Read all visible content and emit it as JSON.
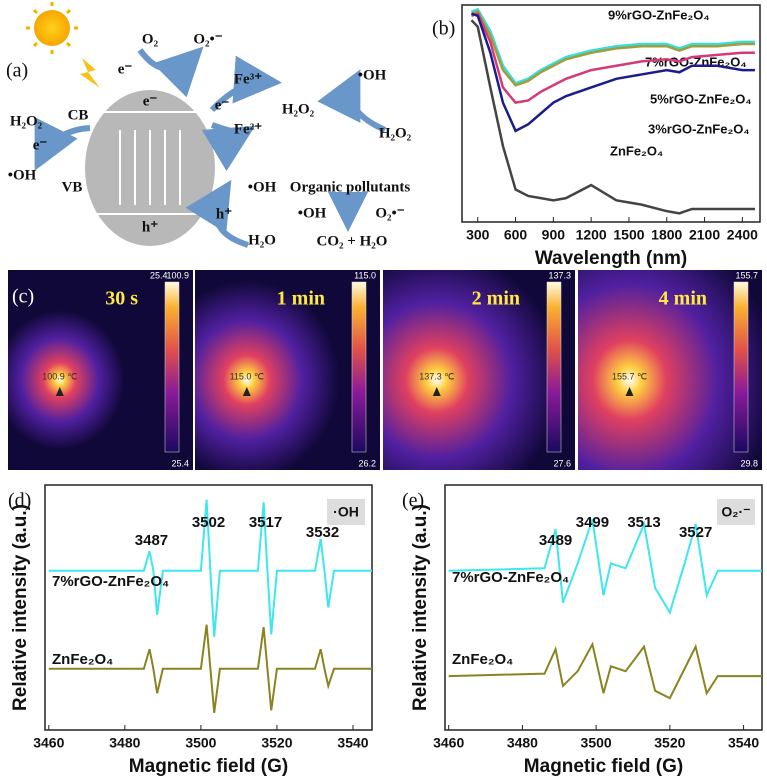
{
  "panel_a": {
    "label": "(a)",
    "texts": [
      "O₂",
      "O₂•⁻",
      "e⁻",
      "Fe³⁺",
      "e⁻",
      "H₂O₂",
      "Fe²⁺",
      "•OH",
      "H₂O₂",
      "H₂O₂",
      "CB",
      "e⁻",
      "•OH",
      "e⁻",
      "VB",
      "h⁺",
      "h⁺",
      "•OH",
      "H₂O",
      "Organic pollutants",
      "•OH",
      "O₂•⁻",
      "CO₂ + H₂O"
    ]
  },
  "panel_c": {
    "label": "(c)",
    "corner": "25.4",
    "frames": [
      {
        "time": "30 s",
        "max": "100.9",
        "min": "25.4",
        "spot": "100.9 ℃"
      },
      {
        "time": "1 min",
        "max": "115.0",
        "min": "26.2",
        "spot": "115.0 ℃"
      },
      {
        "time": "2 min",
        "max": "137.3",
        "min": "27.6",
        "spot": "137.3 ℃"
      },
      {
        "time": "4 min",
        "max": "155.7",
        "min": "29.8",
        "spot": "155.7 ℃"
      }
    ]
  },
  "chart_data": [
    {
      "type": "line",
      "label": "(b)",
      "xlabel": "Wavelength (nm)",
      "x": [
        250,
        300,
        400,
        500,
        600,
        700,
        800,
        900,
        1000,
        1200,
        1400,
        1600,
        1800,
        1900,
        2000,
        2200,
        2400,
        2500
      ],
      "xlim": [
        175,
        2540
      ],
      "xticks": [
        300,
        600,
        900,
        1200,
        1500,
        1800,
        2100,
        2400
      ],
      "ylim": [
        0,
        1
      ],
      "series": [
        {
          "name": "9%rGO-ZnFe₂O₄",
          "color": "#35dede",
          "values": [
            0.97,
            0.98,
            0.88,
            0.72,
            0.64,
            0.66,
            0.7,
            0.73,
            0.76,
            0.79,
            0.81,
            0.82,
            0.82,
            0.8,
            0.82,
            0.82,
            0.83,
            0.83
          ]
        },
        {
          "name": "7%rGO-ZnFe₂O₄",
          "color": "#a39c3c",
          "values": [
            0.96,
            0.97,
            0.86,
            0.7,
            0.63,
            0.65,
            0.69,
            0.72,
            0.75,
            0.78,
            0.8,
            0.81,
            0.81,
            0.79,
            0.81,
            0.81,
            0.82,
            0.82
          ]
        },
        {
          "name": "5%rGO-ZnFe₂O₄",
          "color": "#d43a78",
          "values": [
            0.95,
            0.96,
            0.83,
            0.62,
            0.55,
            0.56,
            0.6,
            0.63,
            0.66,
            0.7,
            0.72,
            0.74,
            0.75,
            0.74,
            0.76,
            0.77,
            0.78,
            0.78
          ]
        },
        {
          "name": "3%rGO-ZnFe₂O₄",
          "color": "#1c1c8c",
          "values": [
            0.96,
            0.95,
            0.78,
            0.55,
            0.42,
            0.45,
            0.5,
            0.55,
            0.58,
            0.62,
            0.66,
            0.68,
            0.7,
            0.69,
            0.72,
            0.72,
            0.7,
            0.7
          ]
        },
        {
          "name": "ZnFe₂O₄",
          "color": "#444444",
          "values": [
            0.93,
            0.9,
            0.62,
            0.35,
            0.15,
            0.12,
            0.11,
            0.1,
            0.11,
            0.17,
            0.1,
            0.08,
            0.05,
            0.04,
            0.06,
            0.06,
            0.06,
            0.06
          ]
        }
      ]
    },
    {
      "type": "line",
      "label": "(d)",
      "xlabel": "Magnetic field (G)",
      "ylabel": "Relative intensity (a.u.)",
      "tag": "·OH",
      "x": [
        3460,
        3485,
        3486.5,
        3487.5,
        3488.5,
        3490,
        3500,
        3501.5,
        3502.5,
        3503.5,
        3505,
        3515,
        3516.5,
        3517.5,
        3518.5,
        3520,
        3530,
        3531.5,
        3532.5,
        3533.5,
        3535,
        3545
      ],
      "xlim": [
        3459,
        3545
      ],
      "xticks": [
        3460,
        3480,
        3500,
        3520,
        3540
      ],
      "ylim": [
        0,
        10
      ],
      "annotations": [
        3487,
        3502,
        3517,
        3532
      ],
      "series": [
        {
          "name": "7%rGO-ZnFe₂O₄",
          "color": "#3ee6ef",
          "values": [
            6.5,
            6.5,
            7.3,
            6.5,
            4.7,
            6.5,
            6.5,
            9.4,
            6.5,
            3.8,
            6.5,
            6.5,
            9.3,
            6.5,
            3.9,
            6.5,
            6.5,
            7.8,
            6.5,
            5.0,
            6.5,
            6.5
          ]
        },
        {
          "name": "ZnFe₂O₄",
          "color": "#8a8420",
          "values": [
            2.5,
            2.5,
            3.3,
            2.5,
            1.5,
            2.5,
            2.5,
            4.3,
            2.5,
            0.7,
            2.5,
            2.5,
            4.2,
            2.5,
            0.8,
            2.5,
            2.5,
            3.3,
            2.5,
            1.8,
            2.5,
            2.5
          ]
        }
      ]
    },
    {
      "type": "line",
      "label": "(e)",
      "xlabel": "Magnetic field (G)",
      "ylabel": "Relative intensity (a.u.)",
      "tag": "O₂·⁻",
      "x": [
        3460,
        3486,
        3489,
        3491,
        3495,
        3499,
        3502,
        3504,
        3508,
        3513,
        3516,
        3520,
        3524,
        3527,
        3530,
        3533,
        3545
      ],
      "xlim": [
        3459,
        3545
      ],
      "xticks": [
        3460,
        3480,
        3500,
        3520,
        3540
      ],
      "ylim": [
        0,
        10
      ],
      "annotations": [
        3489,
        3499,
        3513,
        3527
      ],
      "series": [
        {
          "name": "7%rGO-ZnFe₂O₄",
          "color": "#3ee6ef",
          "values": [
            6.5,
            6.6,
            8.2,
            5.2,
            6.8,
            8.6,
            5.5,
            6.8,
            6.6,
            8.4,
            5.8,
            4.8,
            6.8,
            8.4,
            5.5,
            6.5,
            6.5
          ]
        },
        {
          "name": "ZnFe₂O₄",
          "color": "#8a8420",
          "values": [
            2.2,
            2.3,
            3.3,
            1.8,
            2.4,
            3.5,
            1.5,
            2.6,
            2.4,
            3.4,
            1.6,
            1.3,
            2.5,
            3.4,
            1.5,
            2.2,
            2.2
          ]
        }
      ]
    }
  ]
}
